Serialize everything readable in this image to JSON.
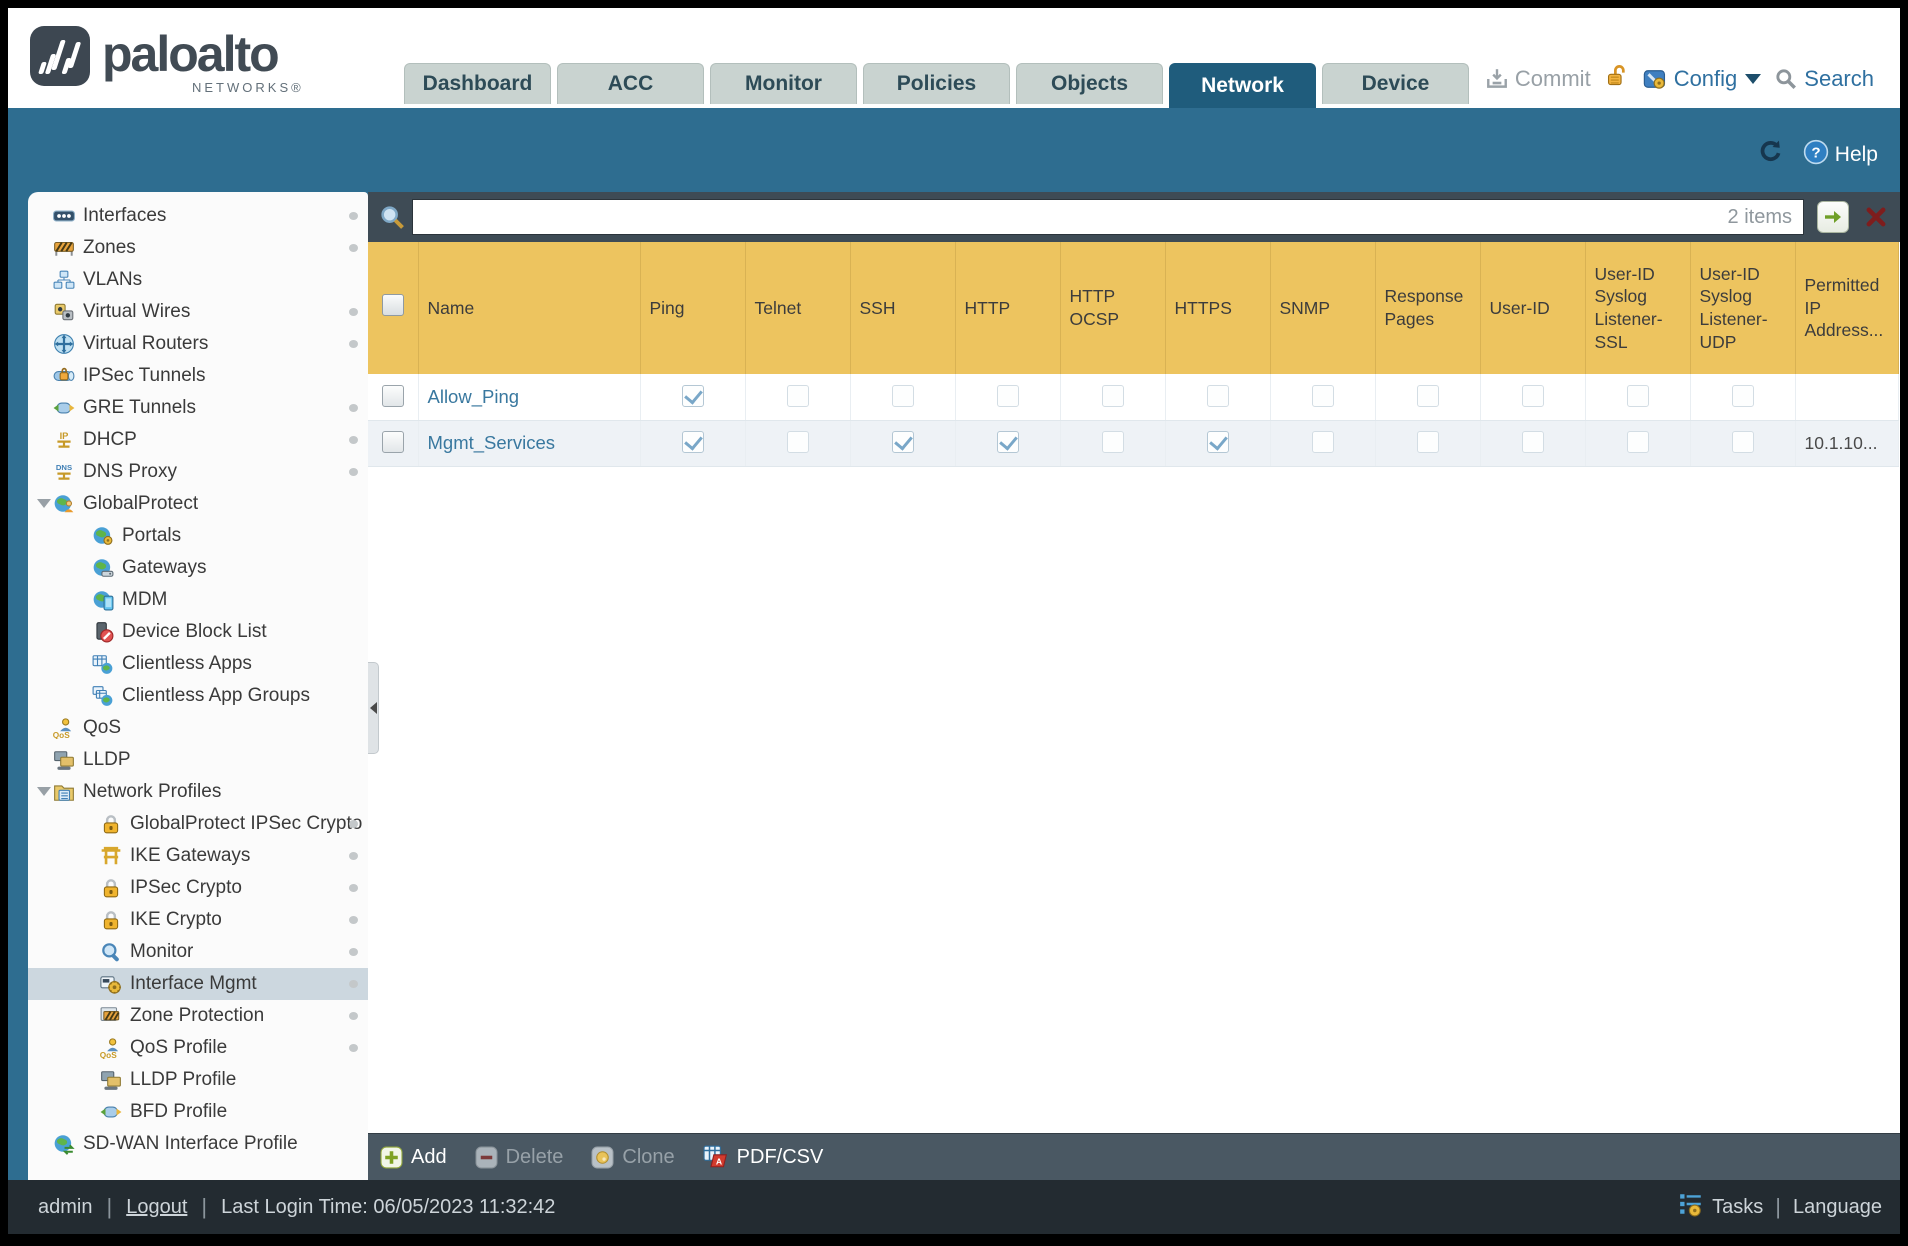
{
  "colors": {
    "banner": "#2e6d90",
    "tab-active": "#1f5c7c",
    "gold-header": "#edc45f",
    "check": "#79a7c8",
    "link": "#39789f"
  },
  "header": {
    "logo": {
      "brand": "paloalto",
      "sub": "NETWORKS®"
    },
    "tabs": [
      {
        "label": "Dashboard",
        "active": false
      },
      {
        "label": "ACC",
        "active": false
      },
      {
        "label": "Monitor",
        "active": false
      },
      {
        "label": "Policies",
        "active": false
      },
      {
        "label": "Objects",
        "active": false
      },
      {
        "label": "Network",
        "active": true
      },
      {
        "label": "Device",
        "active": false
      }
    ],
    "actions": {
      "commit": "Commit",
      "config": "Config",
      "search": "Search"
    }
  },
  "banner": {
    "help": "Help"
  },
  "sidebar": {
    "items": [
      {
        "label": "Interfaces",
        "icon": "interfaces",
        "level": 0,
        "dot": true
      },
      {
        "label": "Zones",
        "icon": "zones",
        "level": 0,
        "dot": true
      },
      {
        "label": "VLANs",
        "icon": "vlans",
        "level": 0,
        "dot": false
      },
      {
        "label": "Virtual Wires",
        "icon": "virtual-wires",
        "level": 0,
        "dot": true
      },
      {
        "label": "Virtual Routers",
        "icon": "virtual-routers",
        "level": 0,
        "dot": true
      },
      {
        "label": "IPSec Tunnels",
        "icon": "ipsec-tunnels",
        "level": 0,
        "dot": false
      },
      {
        "label": "GRE Tunnels",
        "icon": "gre-tunnels",
        "level": 0,
        "dot": true
      },
      {
        "label": "DHCP",
        "icon": "dhcp",
        "level": 0,
        "dot": true
      },
      {
        "label": "DNS Proxy",
        "icon": "dns-proxy",
        "level": 0,
        "dot": true
      },
      {
        "label": "GlobalProtect",
        "icon": "globalprotect",
        "level": 0,
        "expander": true,
        "dot": false
      },
      {
        "label": "Portals",
        "icon": "portals",
        "level": 1,
        "dot": false
      },
      {
        "label": "Gateways",
        "icon": "gateways",
        "level": 1,
        "dot": false
      },
      {
        "label": "MDM",
        "icon": "mdm",
        "level": 1,
        "dot": false
      },
      {
        "label": "Device Block List",
        "icon": "device-block-list",
        "level": 1,
        "dot": false
      },
      {
        "label": "Clientless Apps",
        "icon": "clientless-apps",
        "level": 1,
        "dot": false
      },
      {
        "label": "Clientless App Groups",
        "icon": "clientless-app-groups",
        "level": 1,
        "dot": false
      },
      {
        "label": "QoS",
        "icon": "qos",
        "level": 0,
        "dot": false
      },
      {
        "label": "LLDP",
        "icon": "lldp",
        "level": 0,
        "dot": false
      },
      {
        "label": "Network Profiles",
        "icon": "network-profiles",
        "level": 0,
        "expander": true,
        "dot": false
      },
      {
        "label": "GlobalProtect IPSec Crypto",
        "icon": "lock",
        "level": 2,
        "dot": true
      },
      {
        "label": "IKE Gateways",
        "icon": "ike-gateways",
        "level": 2,
        "dot": true
      },
      {
        "label": "IPSec Crypto",
        "icon": "lock",
        "level": 2,
        "dot": true
      },
      {
        "label": "IKE Crypto",
        "icon": "lock",
        "level": 2,
        "dot": true
      },
      {
        "label": "Monitor",
        "icon": "monitor-search",
        "level": 2,
        "dot": true
      },
      {
        "label": "Interface Mgmt",
        "icon": "interface-mgmt",
        "level": 2,
        "selected": true,
        "dot": true
      },
      {
        "label": "Zone Protection",
        "icon": "zone-protection",
        "level": 2,
        "dot": true
      },
      {
        "label": "QoS Profile",
        "icon": "qos",
        "level": 2,
        "dot": true
      },
      {
        "label": "LLDP Profile",
        "icon": "lldp",
        "level": 2,
        "dot": false
      },
      {
        "label": "BFD Profile",
        "icon": "bfd-profile",
        "level": 2,
        "dot": false
      },
      {
        "label": "SD-WAN Interface Profile",
        "icon": "sd-wan",
        "level": 0,
        "dot": false
      }
    ]
  },
  "content": {
    "search": {
      "value": "",
      "count": "2 items"
    },
    "table": {
      "columns": [
        "Name",
        "Ping",
        "Telnet",
        "SSH",
        "HTTP",
        "HTTP OCSP",
        "HTTPS",
        "SNMP",
        "Response Pages",
        "User-ID",
        "User-ID Syslog Listener-SSL",
        "User-ID Syslog Listener-UDP",
        "Permitted IP Address..."
      ],
      "rows": [
        {
          "name": "Allow_Ping",
          "checks": [
            true,
            false,
            false,
            false,
            false,
            false,
            false,
            false,
            false,
            false,
            false
          ],
          "permitted_ip": ""
        },
        {
          "name": "Mgmt_Services",
          "checks": [
            true,
            false,
            true,
            true,
            false,
            true,
            false,
            false,
            false,
            false,
            false
          ],
          "permitted_ip": "10.1.10..."
        }
      ]
    },
    "toolbar": {
      "buttons": [
        {
          "label": "Add",
          "icon": "add",
          "enabled": true
        },
        {
          "label": "Delete",
          "icon": "delete",
          "enabled": false
        },
        {
          "label": "Clone",
          "icon": "clone",
          "enabled": false
        },
        {
          "label": "PDF/CSV",
          "icon": "pdfcsv",
          "enabled": true
        }
      ]
    }
  },
  "statusbar": {
    "user": "admin",
    "logout": "Logout",
    "last_login": "Last Login Time: 06/05/2023 11:32:42",
    "tasks": "Tasks",
    "language": "Language"
  }
}
